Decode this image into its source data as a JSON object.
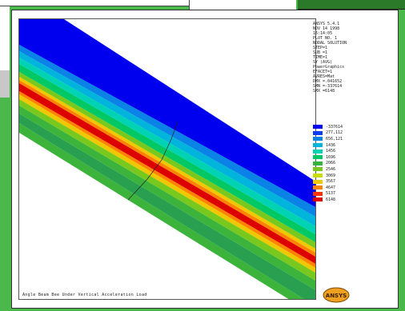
{
  "window": {
    "caption": "Angle Beam Bee Under Vertical Acceleration Load"
  },
  "info_lines": [
    "ANSYS 5.4.1",
    "NOV 14 1998",
    "16:14:05",
    "PLOT NO. 1",
    "NODAL SOLUTION",
    "STEP=1",
    "SUB =1",
    "TIME=1",
    "SY       (AVG)",
    "PowerGraphics",
    "EFACET=1",
    "AVRES=Mat",
    "DMX =.041652",
    "SMN =-337614",
    "SMX =6148"
  ],
  "legend": [
    {
      "label": "-337614",
      "color": "#0000ee"
    },
    {
      "label": "277,112",
      "color": "#0a3cf0"
    },
    {
      "label": "656,121",
      "color": "#0a82e6"
    },
    {
      "label": "1436",
      "color": "#00b4dc"
    },
    {
      "label": "1456",
      "color": "#00d2b4"
    },
    {
      "label": "1696",
      "color": "#00c864"
    },
    {
      "label": "2066",
      "color": "#32b43c"
    },
    {
      "label": "2546",
      "color": "#78c81e"
    },
    {
      "label": "3069",
      "color": "#c8dc00"
    },
    {
      "label": "3567",
      "color": "#f0c800"
    },
    {
      "label": "4647",
      "color": "#ff8200"
    },
    {
      "label": "5137",
      "color": "#ff3200"
    },
    {
      "label": "6148",
      "color": "#dc0000"
    }
  ],
  "logo_text": "ANSYS",
  "colors": {
    "blue": "#0000ee",
    "red": "#dc0000",
    "green": "#3cb43c"
  }
}
